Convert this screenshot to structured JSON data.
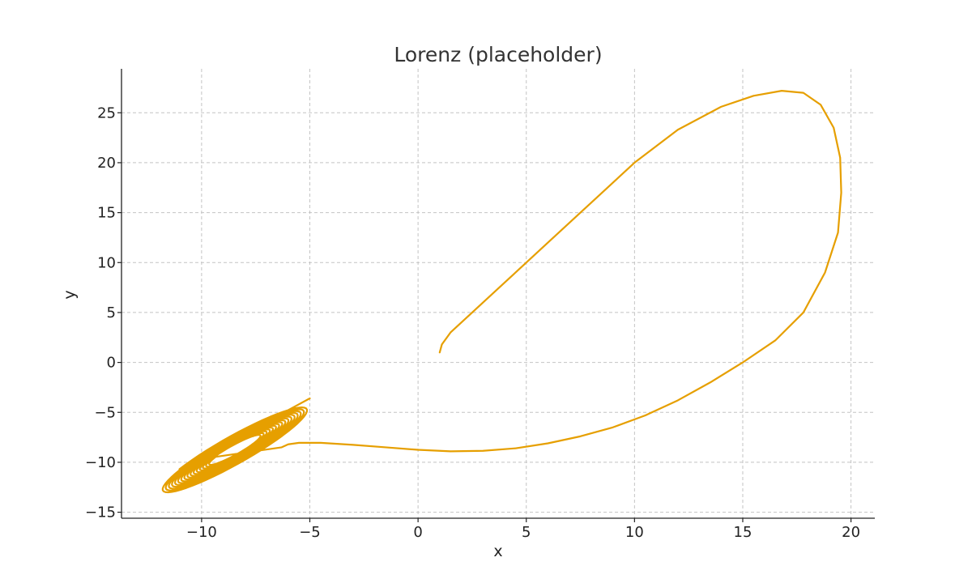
{
  "chart_data": {
    "type": "line",
    "title": "Lorenz (placeholder)",
    "xlabel": "x",
    "ylabel": "y",
    "xlim": [
      -13.7,
      21.1
    ],
    "ylim": [
      -15.6,
      29.4
    ],
    "xticks": [
      -10,
      -5,
      0,
      5,
      10,
      15,
      20
    ],
    "yticks": [
      -15,
      -10,
      -5,
      0,
      5,
      10,
      15,
      20,
      25
    ],
    "xtick_labels": [
      "−10",
      "−5",
      "0",
      "5",
      "10",
      "15",
      "20"
    ],
    "ytick_labels": [
      "−15",
      "−10",
      "−5",
      "0",
      "5",
      "10",
      "15",
      "20",
      "25"
    ],
    "grid": true,
    "line_color": "#E69F00",
    "series": [
      {
        "x": [
          1.0,
          1.1,
          1.5,
          2.5,
          4.0,
          6.0,
          8.0,
          10.0,
          12.0,
          14.0,
          15.5,
          16.8,
          17.8,
          18.6,
          19.2,
          19.5,
          19.55,
          19.4,
          18.8,
          17.8,
          16.5,
          15.0,
          13.5,
          12.0,
          10.5,
          9.0,
          7.5,
          6.0,
          4.5,
          3.0,
          1.5,
          0.0,
          -1.5,
          -3.0,
          -4.5,
          -5.5,
          -6.0,
          -6.3
        ],
        "y": [
          1.0,
          1.8,
          3.0,
          5.0,
          8.0,
          12.0,
          16.0,
          20.0,
          23.3,
          25.6,
          26.7,
          27.2,
          27.0,
          25.8,
          23.5,
          20.5,
          17.0,
          13.0,
          9.0,
          5.0,
          2.2,
          0.0,
          -2.0,
          -3.8,
          -5.3,
          -6.5,
          -7.4,
          -8.1,
          -8.6,
          -8.85,
          -8.9,
          -8.75,
          -8.5,
          -8.25,
          -8.05,
          -8.05,
          -8.2,
          -8.5
        ]
      }
    ],
    "attractor_wing": {
      "center_x": -8.5,
      "center_y": -8.8,
      "inner_radius_x": 1.1,
      "outer_radius_x": 3.3,
      "inner_radius_y": 1.5,
      "outer_radius_y": 4.8,
      "loops": 16,
      "end_x": -5.0,
      "end_y": -3.6
    }
  }
}
